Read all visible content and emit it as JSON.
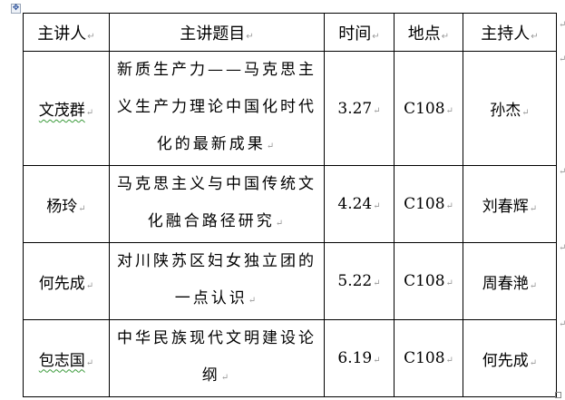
{
  "table": {
    "headers": [
      "主讲人",
      "主讲题目",
      "时间",
      "地点",
      "主持人"
    ],
    "rows": [
      {
        "speaker": "文茂群",
        "topic": "新质生产力——马克思主义生产力理论中国化时代化的最新成果",
        "time": "3.27",
        "place": "C108",
        "host": "孙杰"
      },
      {
        "speaker": "杨玲",
        "topic": "马克思主义与中国传统文化融合路径研究",
        "time": "4.24",
        "place": "C108",
        "host": "刘春辉"
      },
      {
        "speaker": "何先成",
        "topic": "对川陕苏区妇女独立团的一点认识",
        "time": "5.22",
        "place": "C108",
        "host": "周春滟"
      },
      {
        "speaker": "包志国",
        "topic": "中华民族现代文明建设论纲",
        "time": "6.19",
        "place": "C108",
        "host": "何先成"
      }
    ]
  }
}
